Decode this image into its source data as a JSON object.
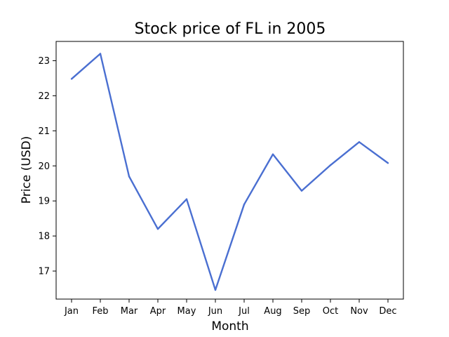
{
  "chart_data": {
    "type": "line",
    "title": "Stock price of FL in 2005",
    "xlabel": "Month",
    "ylabel": "Price (USD)",
    "categories": [
      "Jan",
      "Feb",
      "Mar",
      "Apr",
      "May",
      "Jun",
      "Jul",
      "Aug",
      "Sep",
      "Oct",
      "Nov",
      "Dec"
    ],
    "series": [
      {
        "values": [
          22.48,
          23.2,
          19.7,
          18.2,
          19.05,
          16.46,
          18.9,
          20.33,
          19.29,
          20.02,
          20.68,
          20.08
        ],
        "color": "#4a6fd1"
      }
    ],
    "yticks": [
      17,
      18,
      19,
      20,
      21,
      22,
      23
    ],
    "ylim": [
      16.2,
      23.55
    ],
    "grid": false,
    "legend": "none"
  }
}
